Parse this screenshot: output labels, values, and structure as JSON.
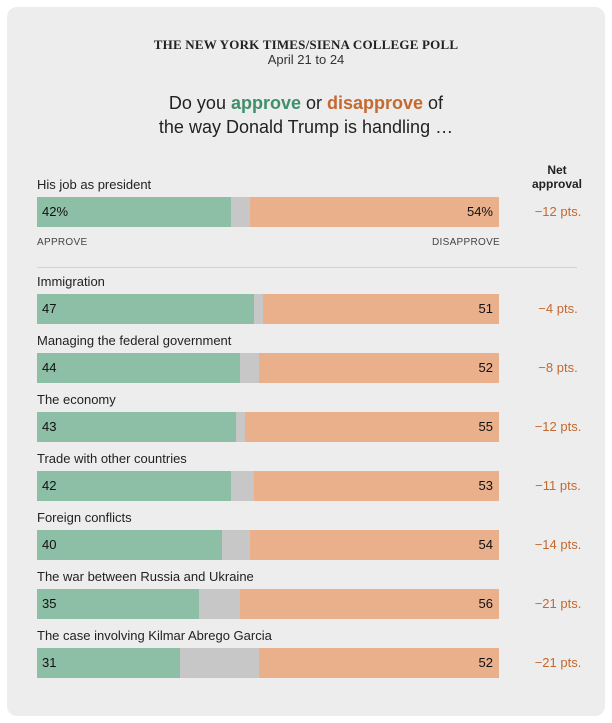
{
  "header": {
    "source": "THE NEW YORK TIMES/SIENA COLLEGE POLL",
    "date": "April 21 to 24",
    "question_line1_pre": "Do you ",
    "question_approve": "approve",
    "question_or": " or ",
    "question_disapprove": "disapprove",
    "question_line1_post": " of",
    "question_line2": "the way Donald Trump is handling …",
    "net_header_line1": "Net",
    "net_header_line2": "approval",
    "approve_axis": "APPROVE",
    "disapprove_axis": "DISAPPROVE"
  },
  "colors": {
    "approve": "#8cbfa5",
    "disapprove": "#eaaf8b",
    "neutral": "#c7c7c7",
    "approve_text": "#3f8f6a",
    "disapprove_text": "#c4692f"
  },
  "chart_data": {
    "type": "bar",
    "stacked": true,
    "orientation": "horizontal",
    "categories": [
      "His job as president",
      "Immigration",
      "Managing the federal government",
      "The economy",
      "Trade with other countries",
      "Foreign conflicts",
      "The war between Russia and Ukraine",
      "The case involving Kilmar Abrego Garcia"
    ],
    "series": [
      {
        "name": "APPROVE",
        "values": [
          42,
          47,
          44,
          43,
          42,
          40,
          35,
          31
        ]
      },
      {
        "name": "DISAPPROVE",
        "values": [
          54,
          51,
          52,
          55,
          53,
          54,
          56,
          52
        ]
      }
    ],
    "approve_labels": [
      "42%",
      "47",
      "44",
      "43",
      "42",
      "40",
      "35",
      "31"
    ],
    "disapprove_labels": [
      "54%",
      "51",
      "52",
      "55",
      "53",
      "54",
      "56",
      "52"
    ],
    "net_labels": [
      "−12 pts.",
      "−4 pts.",
      "−8 pts.",
      "−12 pts.",
      "−11 pts.",
      "−14 pts.",
      "−21 pts.",
      "−21 pts."
    ],
    "xlim": [
      0,
      100
    ]
  }
}
